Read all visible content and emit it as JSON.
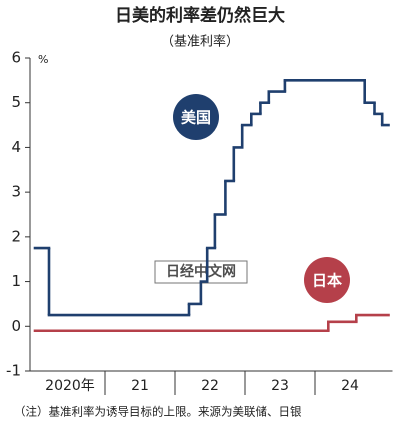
{
  "chart_data": {
    "type": "step",
    "title": "日美的利率差仍然巨大",
    "subtitle": "（基准利率）",
    "y_unit": "%",
    "note": "（注）基准利率为诱导目标的上限。来源为美联储、日银",
    "watermark": "日经中文网",
    "categories": [
      "2020年",
      "21",
      "22",
      "23",
      "24"
    ],
    "xlim": [
      2020,
      2025.05
    ],
    "ylim": [
      -1,
      6
    ],
    "yticks": [
      -1,
      0,
      1,
      2,
      3,
      4,
      5,
      6
    ],
    "series": [
      {
        "name": "美国",
        "color": "#1f3f6e",
        "x": [
          2020.0,
          2020.2,
          2022.2,
          2022.37,
          2022.46,
          2022.57,
          2022.72,
          2022.84,
          2022.96,
          2023.09,
          2023.22,
          2023.34,
          2023.57,
          2024.71,
          2024.85,
          2024.96
        ],
        "values": [
          1.75,
          0.25,
          0.5,
          1,
          1.75,
          2.5,
          3.25,
          4,
          4.5,
          4.75,
          5,
          5.25,
          5.5,
          5,
          4.75,
          4.5
        ]
      },
      {
        "name": "日本",
        "color": "#b5404a",
        "x": [
          2020.0,
          2024.19,
          2024.59
        ],
        "values": [
          -0.1,
          0.1,
          0.25
        ]
      }
    ]
  }
}
